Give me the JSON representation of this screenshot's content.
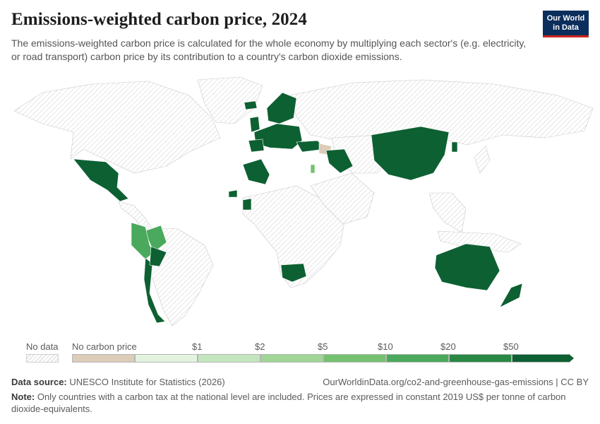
{
  "title": "Emissions-weighted carbon price, 2024",
  "subtitle": "The emissions-weighted carbon price is calculated for the whole economy by multiplying each sector's (e.g. electricity, or road transport) carbon price by its contribution to a country's carbon dioxide emissions.",
  "logo": {
    "line1": "Our World",
    "line2": "in Data",
    "bg": "#0b2e5c",
    "accent": "#ce261e"
  },
  "legend": {
    "no_data": "No data",
    "no_carbon_price": "No carbon price",
    "ticks": [
      "$1",
      "$2",
      "$5",
      "$10",
      "$20",
      "$50"
    ],
    "colors": [
      "#dcccb8",
      "#e3f3e0",
      "#c3e5bf",
      "#a0d597",
      "#74c170",
      "#4aa95c",
      "#2a8845",
      "#0d6032"
    ]
  },
  "source": {
    "label": "Data source:",
    "text": "UNESCO Institute for Statistics (2026)"
  },
  "url": "OurWorldinData.org/co2-and-greenhouse-gas-emissions | CC BY",
  "note": {
    "label": "Note:",
    "text": "Only countries with a carbon tax at the national level are included. Prices are expressed in constant 2019 US$ per tonne of carbon dioxide-equivalents."
  }
}
